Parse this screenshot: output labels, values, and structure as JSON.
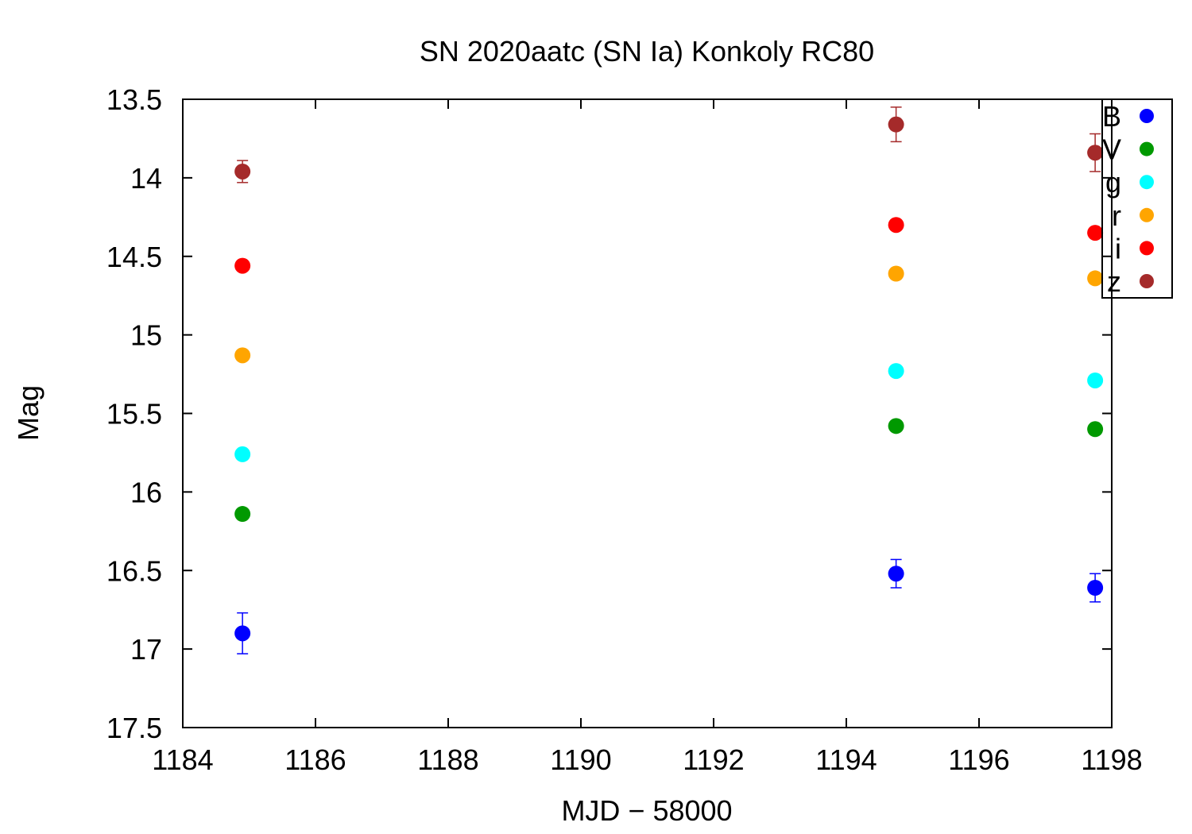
{
  "chart_data": {
    "type": "scatter",
    "title": "SN 2020aatc (SN Ia) Konkoly RC80",
    "xlabel": "MJD − 58000",
    "ylabel": "Mag",
    "xlim": [
      1184,
      1198
    ],
    "ylim": [
      13.5,
      17.5
    ],
    "y_inverted": true,
    "xticks": [
      "1184",
      "1186",
      "1188",
      "1190",
      "1192",
      "1194",
      "1196",
      "1198"
    ],
    "yticks": [
      "13.5",
      "14",
      "14.5",
      "15",
      "15.5",
      "16",
      "16.5",
      "17",
      "17.5"
    ],
    "grid": false,
    "legend_position": "top-right",
    "series": [
      {
        "name": "B",
        "color": "#0000ff",
        "points": [
          {
            "x": 1184.9,
            "y": 16.9,
            "err": 0.13
          },
          {
            "x": 1194.75,
            "y": 16.52,
            "err": 0.09
          },
          {
            "x": 1197.75,
            "y": 16.61,
            "err": 0.09
          }
        ]
      },
      {
        "name": "V",
        "color": "#009900",
        "points": [
          {
            "x": 1184.9,
            "y": 16.14,
            "err": 0.02
          },
          {
            "x": 1194.75,
            "y": 15.58,
            "err": 0.02
          },
          {
            "x": 1197.75,
            "y": 15.6,
            "err": 0.02
          }
        ]
      },
      {
        "name": "g",
        "color": "#00ffff",
        "points": [
          {
            "x": 1184.9,
            "y": 15.76,
            "err": 0.02
          },
          {
            "x": 1194.75,
            "y": 15.23,
            "err": 0.02
          },
          {
            "x": 1197.75,
            "y": 15.29,
            "err": 0.02
          }
        ]
      },
      {
        "name": "r",
        "color": "#ffa500",
        "points": [
          {
            "x": 1184.9,
            "y": 15.13,
            "err": 0.02
          },
          {
            "x": 1194.75,
            "y": 14.61,
            "err": 0.02
          },
          {
            "x": 1197.75,
            "y": 14.64,
            "err": 0.02
          }
        ]
      },
      {
        "name": "i",
        "color": "#ff0000",
        "points": [
          {
            "x": 1184.9,
            "y": 14.56,
            "err": 0.02
          },
          {
            "x": 1194.75,
            "y": 14.3,
            "err": 0.02
          },
          {
            "x": 1197.75,
            "y": 14.35,
            "err": 0.03
          }
        ]
      },
      {
        "name": "z",
        "color": "#a52a2a",
        "points": [
          {
            "x": 1184.9,
            "y": 13.96,
            "err": 0.07
          },
          {
            "x": 1194.75,
            "y": 13.66,
            "err": 0.11
          },
          {
            "x": 1197.75,
            "y": 13.84,
            "err": 0.12
          }
        ]
      }
    ]
  }
}
